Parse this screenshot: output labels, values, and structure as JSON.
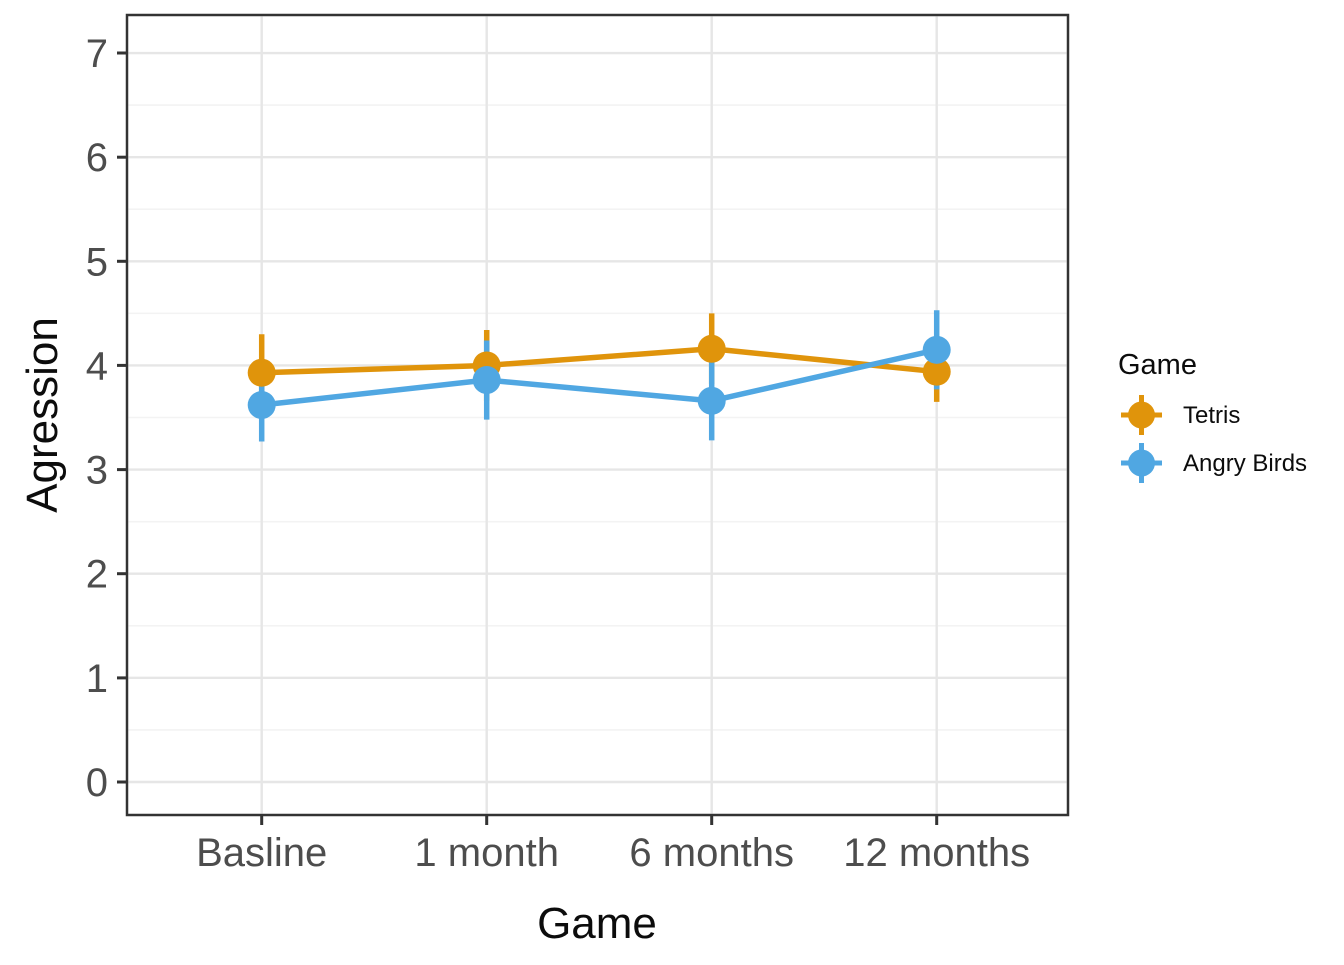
{
  "chart_data": {
    "type": "line",
    "title": "",
    "xlabel": "Game",
    "ylabel": "Agression",
    "categories": [
      "Basline",
      "1 month",
      "6 months",
      "12 months"
    ],
    "yticks": [
      "0",
      "1",
      "2",
      "3",
      "4",
      "5",
      "6",
      "7"
    ],
    "ylim": [
      -0.32,
      7.37
    ],
    "grid": "horizontal major+minor, vertical major at categories",
    "legend": {
      "title": "Game",
      "position": "right"
    },
    "series": [
      {
        "name": "Tetris",
        "color": "#E0940B",
        "means": [
          3.93,
          4.0,
          4.16,
          3.94
        ],
        "ci_low": [
          3.56,
          3.66,
          3.82,
          3.65
        ],
        "ci_high": [
          4.3,
          4.34,
          4.5,
          4.23
        ]
      },
      {
        "name": "Angry Birds",
        "color": "#50A7E2",
        "means": [
          3.62,
          3.86,
          3.66,
          4.15
        ],
        "ci_low": [
          3.27,
          3.48,
          3.28,
          3.77
        ],
        "ci_high": [
          3.97,
          4.24,
          4.04,
          4.53
        ]
      }
    ],
    "style": {
      "panel_border": "#333333",
      "grid_major": "#e6e6e6",
      "grid_minor": "#f3f3f3",
      "tick_color": "#333333",
      "point_radius": 14,
      "line_width": 5.5
    }
  }
}
